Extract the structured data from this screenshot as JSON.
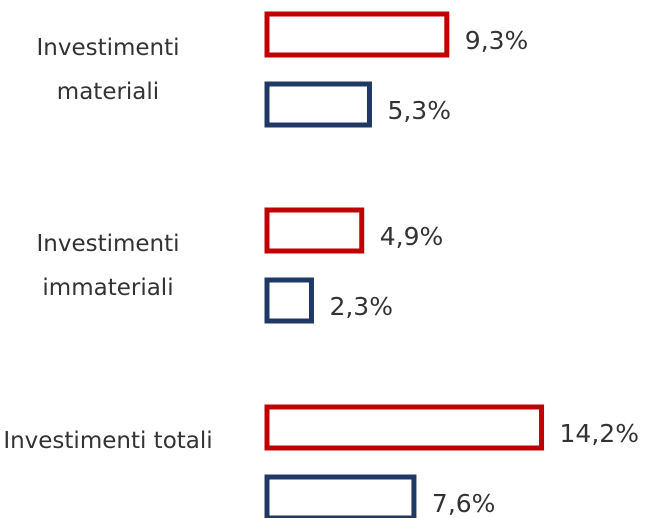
{
  "chart_data": {
    "type": "bar",
    "orientation": "horizontal",
    "categories": [
      "Investimenti materiali",
      "Investimenti immateriali",
      "Investimenti totali"
    ],
    "series": [
      {
        "color": "#c00000",
        "values": [
          9.3,
          4.9,
          14.2
        ],
        "value_labels": [
          "9,3%",
          "4,9%",
          "14,2%"
        ]
      },
      {
        "color": "#1f3864",
        "values": [
          5.3,
          2.3,
          7.6
        ],
        "value_labels": [
          "5,3%",
          "2,3%",
          "7,6%"
        ]
      }
    ],
    "xlim": [
      0,
      15
    ]
  }
}
